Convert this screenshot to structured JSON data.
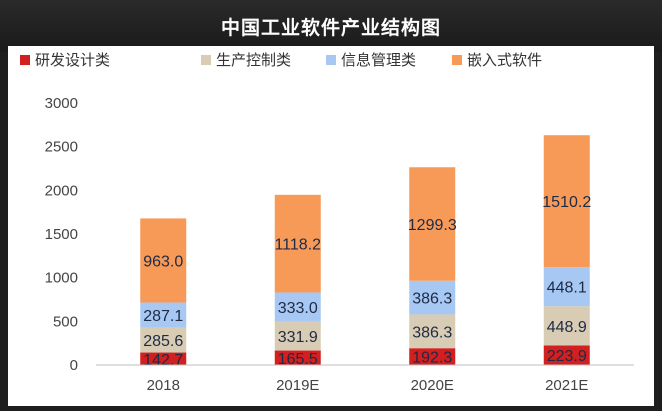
{
  "title": "中国工业软件产业结构图",
  "colors": {
    "研发设计类": "#d21f1f",
    "生产控制类": "#d9ccb4",
    "信息管理类": "#a6c8f3",
    "嵌入式软件": "#f79a57"
  },
  "chart_data": {
    "type": "bar",
    "stacked": true,
    "categories": [
      "2018",
      "2019E",
      "2020E",
      "2021E"
    ],
    "series": [
      {
        "name": "研发设计类",
        "values": [
          142.7,
          165.5,
          192.3,
          223.9
        ]
      },
      {
        "name": "生产控制类",
        "values": [
          285.6,
          331.9,
          386.3,
          448.9
        ]
      },
      {
        "name": "信息管理类",
        "values": [
          287.1,
          333.0,
          386.3,
          448.1
        ]
      },
      {
        "name": "嵌入式软件",
        "values": [
          963.0,
          1118.2,
          1299.3,
          1510.2
        ]
      }
    ],
    "value_labels": [
      [
        "142.7",
        "165.5",
        "192.3",
        "223.9"
      ],
      [
        "285.6",
        "331.9",
        "386.3",
        "448.9"
      ],
      [
        "287.1",
        "333.0",
        "386.3",
        "448.1"
      ],
      [
        "963.0",
        "1118.2",
        "1299.3",
        "1510.2"
      ]
    ],
    "yticks": [
      "0",
      "500",
      "1000",
      "1500",
      "2000",
      "2500",
      "3000"
    ],
    "ylim": [
      0,
      3000
    ],
    "legend": "top",
    "grid": false,
    "xlabel": "",
    "ylabel": ""
  }
}
